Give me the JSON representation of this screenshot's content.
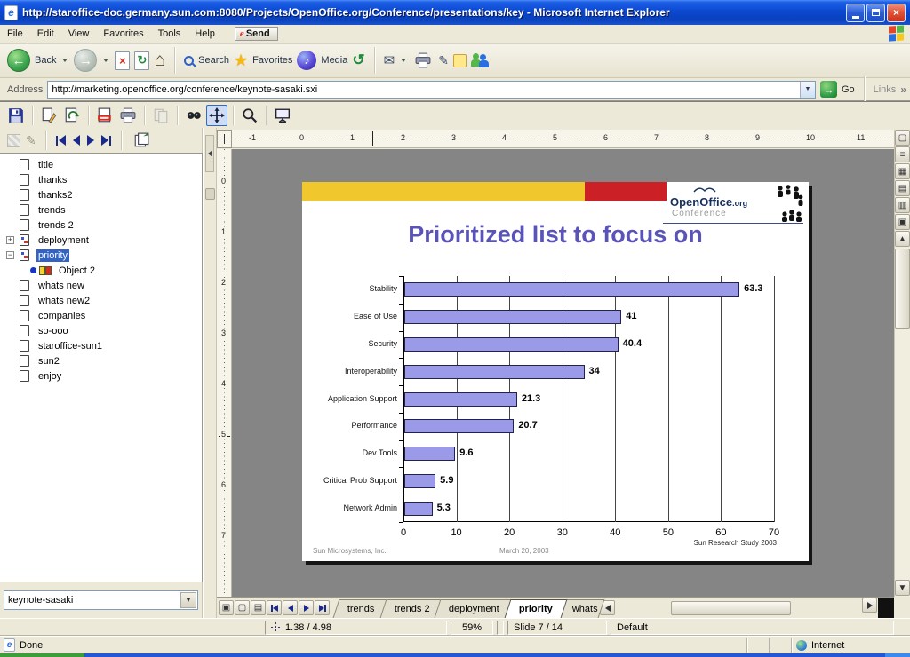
{
  "window": {
    "title": "http://staroffice-doc.germany.sun.com:8080/Projects/OpenOffice.org/Conference/presentations/key - Microsoft Internet Explorer"
  },
  "menu": {
    "items": [
      "File",
      "Edit",
      "View",
      "Favorites",
      "Tools",
      "Help"
    ],
    "send_e": "e",
    "send_label": "Send"
  },
  "ie_toolbar": {
    "back_label": "Back",
    "search_label": "Search",
    "favorites_label": "Favorites",
    "media_label": "Media"
  },
  "address": {
    "label": "Address",
    "value": "http://marketing.openoffice.org/conference/keynote-sasaki.sxi",
    "go_label": "Go",
    "links_label": "Links",
    "links_chevron": "»"
  },
  "icons": {
    "back_arrow": "←",
    "forward_arrow": "→",
    "stop_x": "×",
    "refresh": "↻",
    "home": "⌂",
    "favorites_star": "★",
    "media_note": "♪",
    "history": "↺",
    "mail": "✉",
    "edit_pencil": "✎",
    "dropdown": "▼",
    "close": "×",
    "expander_plus": "+",
    "expander_minus": "−"
  },
  "sidebar": {
    "items": [
      {
        "label": "title",
        "icon": "page"
      },
      {
        "label": "thanks",
        "icon": "page"
      },
      {
        "label": "thanks2",
        "icon": "page"
      },
      {
        "label": "trends",
        "icon": "page"
      },
      {
        "label": "trends 2",
        "icon": "page"
      },
      {
        "label": "deployment",
        "icon": "page-objects",
        "expander": "plus"
      },
      {
        "label": "priority",
        "icon": "page-objects",
        "expander": "minus",
        "selected": true
      },
      {
        "label": "Object 2",
        "icon": "ole",
        "child": true
      },
      {
        "label": "whats new",
        "icon": "page"
      },
      {
        "label": "whats new2",
        "icon": "page"
      },
      {
        "label": "companies",
        "icon": "page"
      },
      {
        "label": "so-ooo",
        "icon": "page"
      },
      {
        "label": "staroffice-sun1",
        "icon": "page"
      },
      {
        "label": "sun2",
        "icon": "page"
      },
      {
        "label": "enjoy",
        "icon": "page"
      }
    ],
    "combo_value": "keynote-sasaki"
  },
  "rulers": {
    "h": [
      "-1",
      "0",
      "1",
      "2",
      "3",
      "4",
      "5",
      "6",
      "7",
      "8",
      "9",
      "10",
      "11"
    ],
    "v": [
      "0",
      "1",
      "2",
      "3",
      "4",
      "5",
      "6",
      "7"
    ]
  },
  "slide": {
    "title": "Prioritized list to focus on",
    "logo_brand": "OpenOffice",
    "logo_org": ".org",
    "logo_sub": "Conference",
    "footer_left": "Sun Microsystems, Inc.",
    "footer_center": "March 20, 2003"
  },
  "chart_data": {
    "type": "bar",
    "orientation": "horizontal",
    "title": "Prioritized list to focus on",
    "categories": [
      "Stability",
      "Ease of Use",
      "Security",
      "Interoperability",
      "Application Support",
      "Performance",
      "Dev Tools",
      "Critical Prob Support",
      "Network Admin"
    ],
    "values": [
      63.3,
      41,
      40.4,
      34,
      21.3,
      20.7,
      9.6,
      5.9,
      5.3
    ],
    "display_values": [
      "63.3",
      "41",
      "40.4",
      "34",
      "21.3",
      "20.7",
      "9.6",
      "5.9",
      "5.3"
    ],
    "xlim": [
      0,
      70
    ],
    "x_ticks": [
      0,
      10,
      20,
      30,
      40,
      50,
      60,
      70
    ],
    "grid": true,
    "legend": false,
    "bar_color": "#9a9ae8",
    "source": "Sun Research Study 2003"
  },
  "right_rail": {
    "buttons": [
      {
        "name": "drawing-view",
        "glyph": "▢"
      },
      {
        "name": "outline-view",
        "glyph": "≡"
      },
      {
        "name": "slides-view",
        "glyph": "▦"
      },
      {
        "name": "notes-view",
        "glyph": "▤"
      },
      {
        "name": "handout-view",
        "glyph": "▥"
      },
      {
        "name": "slideshow",
        "glyph": "▣"
      },
      {
        "name": "scroll-up",
        "glyph": "▲"
      }
    ],
    "scroll_down_glyph": "▼"
  },
  "tabbar": {
    "view_buttons": [
      {
        "name": "zoom-page-mode",
        "glyph": "▣"
      },
      {
        "name": "page-mode",
        "glyph": "▢"
      },
      {
        "name": "fit-page-mode",
        "glyph": "▤"
      }
    ],
    "tabs": [
      "trends",
      "trends 2",
      "deployment",
      "priority",
      "whats"
    ],
    "active": "priority"
  },
  "statusbar": {
    "position": "1.38 / 4.98",
    "zoom": "59%",
    "slide": "Slide 7 / 14",
    "style": "Default"
  },
  "ie_status": {
    "left": "Done",
    "zone": "Internet"
  }
}
